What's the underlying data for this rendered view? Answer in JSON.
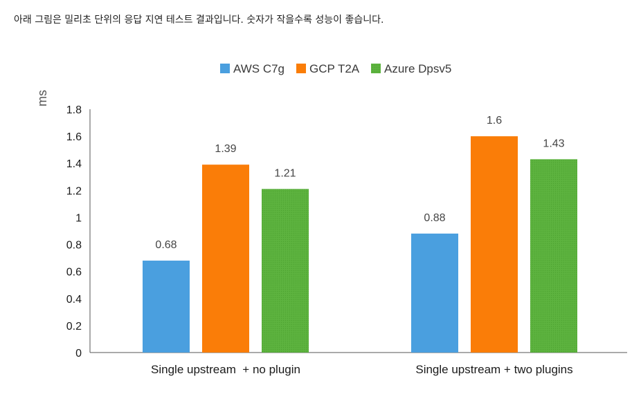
{
  "caption": "아래 그림은 밀리초 단위의 응답 지연 테스트 결과입니다. 숫자가 작을수록 성능이 좋습니다.",
  "chart_data": {
    "type": "bar",
    "title": "",
    "xlabel": "",
    "ylabel": "ms",
    "ylim": [
      0,
      1.8
    ],
    "yticks": [
      "0",
      "0.2",
      "0.4",
      "0.6",
      "0.8",
      "1",
      "1.2",
      "1.4",
      "1.6",
      "1.8"
    ],
    "grid": false,
    "legend_position": "top-center",
    "categories": [
      "Single upstream  + no plugin",
      "Single upstream + two plugins"
    ],
    "series": [
      {
        "name": "AWS C7g",
        "color": "#4a9fdf",
        "values": [
          0.68,
          0.88
        ],
        "labels": [
          "0.68",
          "0.88"
        ]
      },
      {
        "name": "GCP T2A",
        "color": "#fa7d08",
        "values": [
          1.39,
          1.6
        ],
        "labels": [
          "1.39",
          "1.6"
        ]
      },
      {
        "name": "Azure Dpsv5",
        "color": "#5db33f",
        "values": [
          1.21,
          1.43
        ],
        "labels": [
          "1.21",
          "1.43"
        ]
      }
    ]
  }
}
